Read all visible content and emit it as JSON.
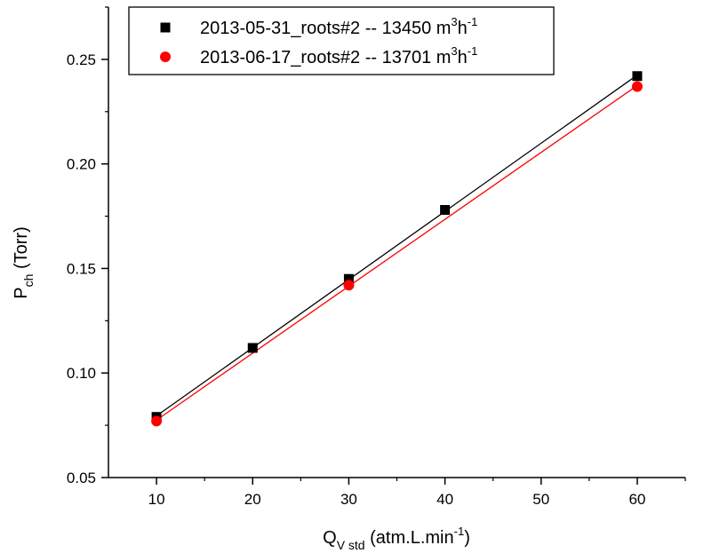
{
  "chart_data": {
    "type": "scatter",
    "x": [
      10,
      20,
      30,
      40,
      60
    ],
    "series": [
      {
        "name": "2013-05-31_roots#2 -- 13450 m³h⁻¹",
        "legend_parts": [
          "2013-05-31_roots#2 -- 13450 m",
          "3",
          "h",
          "-1"
        ],
        "marker": "square",
        "color": "#000000",
        "points": [
          [
            10,
            0.079
          ],
          [
            20,
            0.112
          ],
          [
            30,
            0.145
          ],
          [
            40,
            0.178
          ],
          [
            60,
            0.242
          ]
        ],
        "fit": [
          [
            10,
            0.0795
          ],
          [
            60,
            0.2425
          ]
        ]
      },
      {
        "name": "2013-06-17_roots#2 -- 13701 m³h⁻¹",
        "legend_parts": [
          "2013-06-17_roots#2 -- 13701 m",
          "3",
          "h",
          "-1"
        ],
        "marker": "circle",
        "color": "#ff0000",
        "points": [
          [
            10,
            0.077
          ],
          [
            30,
            0.142
          ],
          [
            60,
            0.237
          ]
        ],
        "fit": [
          [
            10,
            0.0775
          ],
          [
            60,
            0.2375
          ]
        ]
      }
    ],
    "xlabel": {
      "main": "Q",
      "sub": "V std",
      "rest": " (atm.L.min",
      "sup": "-1",
      "close": ")"
    },
    "ylabel": {
      "main": "P",
      "sub": "ch",
      "rest": " (Torr)"
    },
    "xlim": [
      5,
      65
    ],
    "ylim": [
      0.05,
      0.275
    ],
    "xticks": [
      10,
      20,
      30,
      40,
      50,
      60
    ],
    "xtick_labels": [
      "10",
      "20",
      "30",
      "40",
      "50",
      "60"
    ],
    "yticks": [
      0.05,
      0.1,
      0.15,
      0.2,
      0.25
    ],
    "ytick_labels": [
      "0.05",
      "0.10",
      "0.15",
      "0.20",
      "0.25"
    ],
    "grid": false,
    "legend_position": "top-center"
  }
}
